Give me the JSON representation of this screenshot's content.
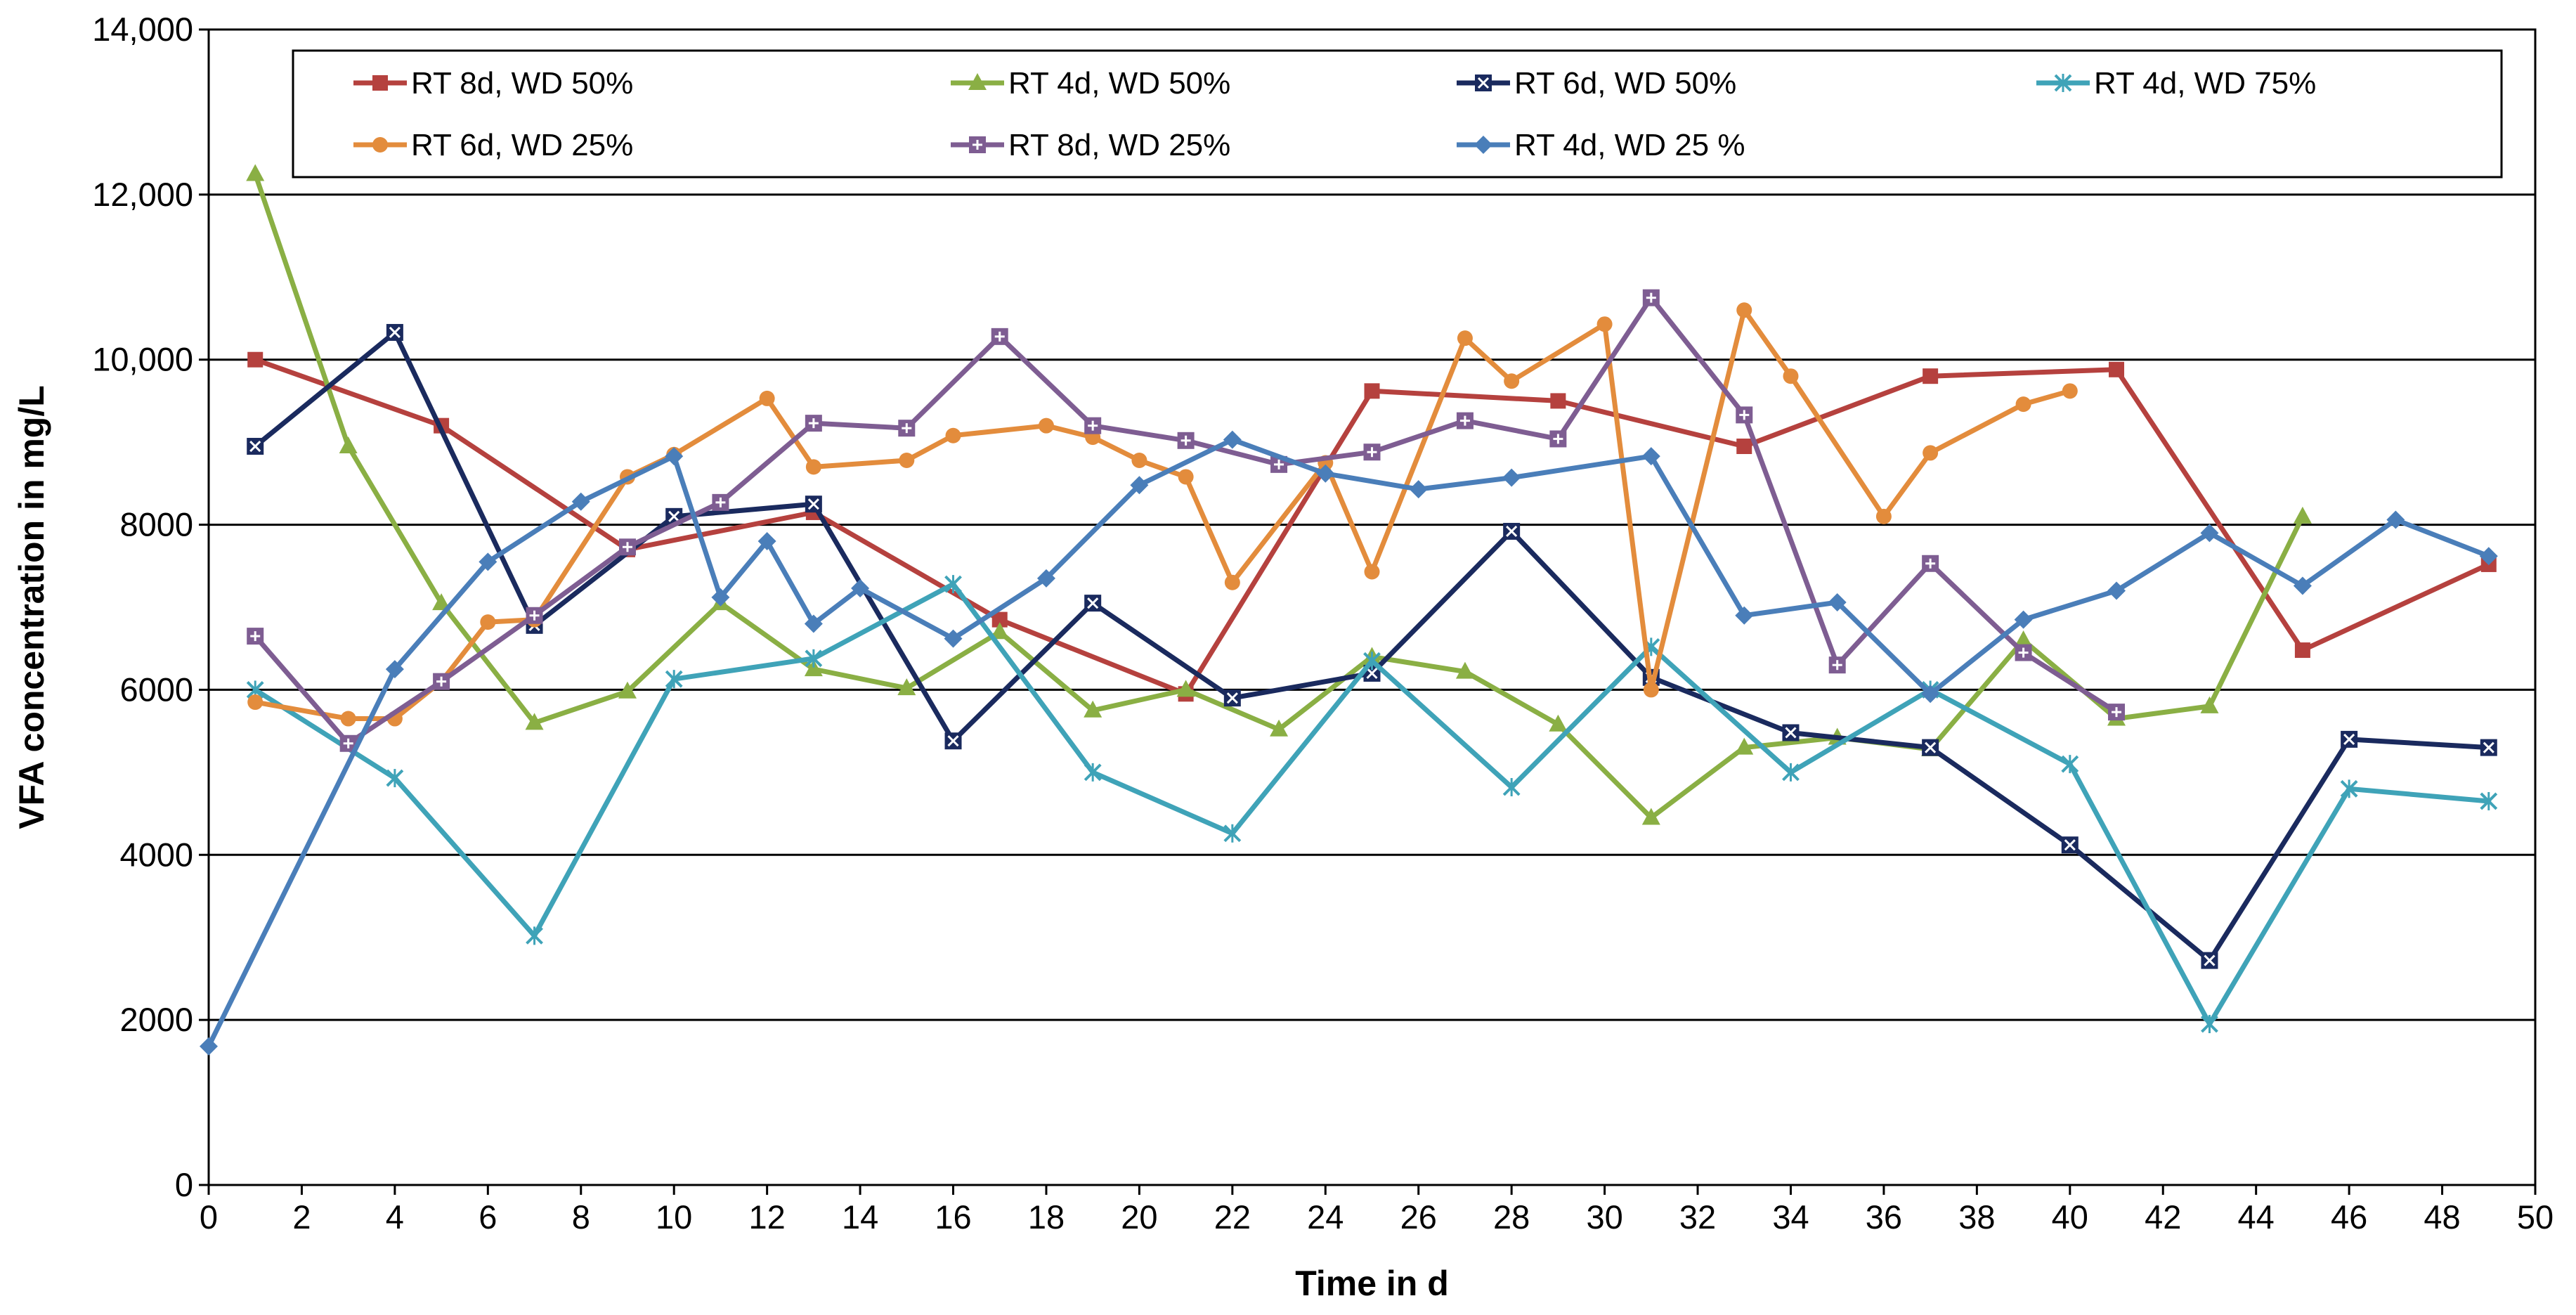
{
  "chart_data": {
    "type": "line",
    "xlabel": "Time in d",
    "ylabel": "VFA concentration in mg/L",
    "xlim": [
      0,
      50
    ],
    "ylim": [
      0,
      14000
    ],
    "x_ticks": [
      0,
      2,
      4,
      6,
      8,
      10,
      12,
      14,
      16,
      18,
      20,
      22,
      24,
      26,
      28,
      30,
      32,
      34,
      36,
      38,
      40,
      42,
      44,
      46,
      48,
      50
    ],
    "x_tick_labels": [
      "0",
      "2",
      "4",
      "6",
      "8",
      "10",
      "12",
      "14",
      "16",
      "18",
      "20",
      "22",
      "24",
      "26",
      "28",
      "30",
      "32",
      "34",
      "36",
      "38",
      "40",
      "42",
      "44",
      "46",
      "48",
      "50"
    ],
    "y_ticks": [
      0,
      2000,
      4000,
      6000,
      8000,
      10000,
      12000,
      14000
    ],
    "y_tick_labels": [
      "0",
      "2000",
      "4000",
      "6000",
      "8000",
      "10,000",
      "12,000",
      "14,000"
    ],
    "grid": "horizontal",
    "legend_position": "top",
    "series": [
      {
        "name": "RT 8d, WD 50%",
        "color": "#B5413E",
        "marker": "square",
        "x": [
          1,
          5,
          9,
          13,
          17,
          21,
          25,
          29,
          33,
          37,
          41,
          45,
          49
        ],
        "y": [
          10000,
          9200,
          7700,
          8150,
          6850,
          5950,
          9620,
          9500,
          8950,
          9800,
          9880,
          6480,
          7520
        ]
      },
      {
        "name": "RT 4d, WD 50%",
        "color": "#8AAF44",
        "marker": "triangle",
        "x": [
          1,
          3,
          5,
          7,
          9,
          11,
          13,
          15,
          17,
          19,
          21,
          23,
          25,
          27,
          29,
          31,
          33,
          35,
          37,
          39,
          41,
          43,
          45
        ],
        "y": [
          12250,
          8950,
          7050,
          5600,
          5980,
          7050,
          6250,
          6020,
          6700,
          5750,
          6000,
          5520,
          6400,
          6220,
          5580,
          4450,
          5300,
          5420,
          5280,
          6600,
          5650,
          5800,
          8100
        ]
      },
      {
        "name": "RT 6d, WD 50%",
        "color": "#1A2A5E",
        "marker": "square-x",
        "x": [
          1,
          4,
          7,
          10,
          13,
          16,
          19,
          22,
          25,
          28,
          31,
          34,
          37,
          40,
          43,
          46,
          49
        ],
        "y": [
          8950,
          10330,
          6780,
          8100,
          8250,
          5380,
          7050,
          5900,
          6200,
          7920,
          6150,
          5480,
          5300,
          4120,
          2720,
          5400,
          5300
        ]
      },
      {
        "name": "RT 4d, WD 75%",
        "color": "#3FA3B8",
        "marker": "x",
        "x": [
          1,
          4,
          7,
          10,
          13,
          16,
          19,
          22,
          25,
          28,
          31,
          34,
          37,
          40,
          43,
          46,
          49
        ],
        "y": [
          6000,
          4930,
          3020,
          6130,
          6380,
          7280,
          5000,
          4260,
          6350,
          4820,
          6520,
          5000,
          6000,
          5100,
          1950,
          4800,
          4650
        ]
      },
      {
        "name": "RT 6d, WD 25%",
        "color": "#E38C3C",
        "marker": "circle",
        "x": [
          1,
          3,
          4,
          5,
          6,
          7,
          9,
          10,
          12,
          13,
          15,
          16,
          18,
          19,
          20,
          21,
          22,
          24,
          25,
          27,
          28,
          30,
          31,
          33,
          34,
          36,
          37,
          39,
          40
        ],
        "y": [
          5850,
          5650,
          5650,
          6100,
          6820,
          6850,
          8580,
          8850,
          9530,
          8700,
          8780,
          9080,
          9200,
          9060,
          8780,
          8580,
          7300,
          8750,
          7430,
          10260,
          9740,
          10430,
          6000,
          10600,
          9800,
          8100,
          8870,
          9460,
          9620
        ]
      },
      {
        "name": "RT 8d, WD 25%",
        "color": "#7E5D92",
        "marker": "square-plus",
        "x": [
          1,
          3,
          5,
          7,
          9,
          11,
          13,
          15,
          17,
          19,
          21,
          23,
          25,
          27,
          29,
          31,
          33,
          35,
          37,
          39,
          41
        ],
        "y": [
          6650,
          5350,
          6100,
          6900,
          7730,
          8270,
          9230,
          9170,
          10280,
          9200,
          9020,
          8730,
          8880,
          9260,
          9040,
          10750,
          9330,
          6300,
          7530,
          6450,
          5730
        ]
      },
      {
        "name": "RT 4d, WD 25 %",
        "color": "#4A7EB9",
        "marker": "diamond",
        "x": [
          0,
          4,
          6,
          8,
          10,
          11,
          12,
          13,
          14,
          16,
          18,
          20,
          22,
          24,
          26,
          28,
          31,
          33,
          35,
          37,
          39,
          41,
          43,
          45,
          47,
          49
        ],
        "y": [
          1680,
          6250,
          7550,
          8280,
          8830,
          7120,
          7800,
          6800,
          7230,
          6620,
          7350,
          8480,
          9030,
          8620,
          8430,
          8570,
          8830,
          6900,
          7060,
          5950,
          6850,
          7200,
          7900,
          7260,
          8060,
          7620
        ]
      }
    ]
  }
}
